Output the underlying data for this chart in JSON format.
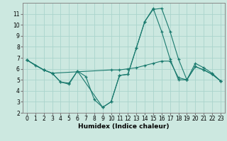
{
  "title": "",
  "xlabel": "Humidex (Indice chaleur)",
  "ylabel": "",
  "bg_color": "#cce8e0",
  "line_color": "#1a7a6e",
  "grid_color": "#aad4cc",
  "xlim": [
    -0.5,
    23.5
  ],
  "ylim": [
    2,
    12
  ],
  "yticks": [
    2,
    3,
    4,
    5,
    6,
    7,
    8,
    9,
    10,
    11
  ],
  "xticks": [
    0,
    1,
    2,
    3,
    4,
    5,
    6,
    7,
    8,
    9,
    10,
    11,
    12,
    13,
    14,
    15,
    16,
    17,
    18,
    19,
    20,
    21,
    22,
    23
  ],
  "series": [
    {
      "x": [
        0,
        1,
        2,
        3,
        4,
        5,
        6,
        7,
        8,
        9,
        10,
        11,
        12,
        13,
        14,
        15,
        16,
        17,
        18,
        19,
        20,
        21,
        22,
        23
      ],
      "y": [
        6.8,
        6.3,
        5.9,
        5.6,
        4.8,
        4.7,
        5.8,
        5.3,
        3.2,
        2.5,
        3.0,
        5.4,
        5.5,
        7.9,
        10.3,
        11.4,
        11.5,
        9.4,
        6.9,
        5.0,
        6.5,
        6.1,
        5.6,
        4.9
      ]
    },
    {
      "x": [
        0,
        2,
        3,
        4,
        5,
        6,
        9,
        10,
        11,
        12,
        13,
        14,
        15,
        16,
        17,
        18,
        19,
        20,
        21,
        22,
        23
      ],
      "y": [
        6.8,
        5.9,
        5.6,
        4.8,
        4.6,
        5.8,
        2.5,
        3.0,
        5.4,
        5.5,
        7.9,
        10.3,
        11.5,
        9.4,
        6.9,
        5.0,
        5.0,
        6.2,
        5.9,
        5.5,
        4.9
      ]
    },
    {
      "x": [
        0,
        2,
        3,
        10,
        11,
        12,
        13,
        14,
        15,
        16,
        17,
        18,
        19,
        20,
        21,
        22,
        23
      ],
      "y": [
        6.8,
        5.9,
        5.6,
        5.9,
        5.9,
        6.0,
        6.1,
        6.3,
        6.5,
        6.7,
        6.7,
        5.2,
        5.0,
        6.2,
        5.9,
        5.5,
        4.9
      ]
    }
  ]
}
